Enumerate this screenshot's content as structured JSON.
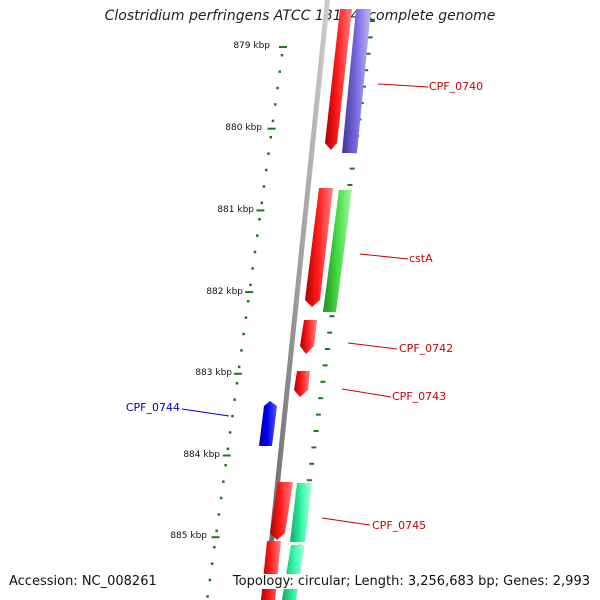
{
  "title": "Clostridium perfringens ATCC 13124, complete genome",
  "footer": {
    "accession": "Accession: NC_008261",
    "topology": "Topology: circular; Length: 3,256,683 bp; Genes: 2,993"
  },
  "ticks": [
    {
      "label": "879 kbp",
      "kbp": 879
    },
    {
      "label": "880 kbp",
      "kbp": 880
    },
    {
      "label": "881 kbp",
      "kbp": 881
    },
    {
      "label": "882 kbp",
      "kbp": 882
    },
    {
      "label": "883 kbp",
      "kbp": 883
    },
    {
      "label": "884 kbp",
      "kbp": 884
    },
    {
      "label": "885 kbp",
      "kbp": 885
    }
  ],
  "genes": [
    {
      "label": "CPF_0740",
      "strand": "forward",
      "color": "#cc0000"
    },
    {
      "label": "cstA",
      "strand": "forward",
      "color": "#cc0000"
    },
    {
      "label": "CPF_0742",
      "strand": "forward",
      "color": "#cc0000"
    },
    {
      "label": "CPF_0743",
      "strand": "forward",
      "color": "#cc0000"
    },
    {
      "label": "CPF_0744",
      "strand": "reverse",
      "color": "#0000cc"
    },
    {
      "label": "CPF_0745",
      "strand": "forward",
      "color": "#cc0000"
    }
  ],
  "colors": {
    "forward_gene": "#ee0000",
    "reverse_gene": "#0000ee",
    "tick": "#1a7a1a",
    "backbone": "#888888",
    "cog_purple": "#6e5fd0",
    "cog_green": "#33cc33",
    "cog_teal": "#22ee99"
  }
}
